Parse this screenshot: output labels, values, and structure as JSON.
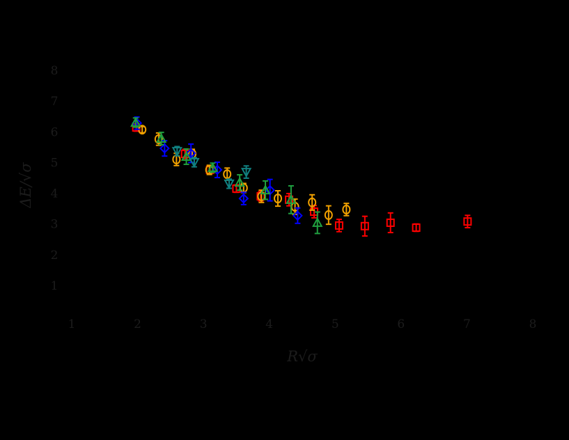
{
  "chart_data": {
    "type": "scatter",
    "title": "",
    "xlabel": "R√σ",
    "ylabel": "ΔE/√σ",
    "xlim": [
      1,
      8
    ],
    "ylim": [
      1,
      8
    ],
    "xticks": [
      1,
      2,
      3,
      4,
      5,
      6,
      7,
      8
    ],
    "yticks": [
      1,
      2,
      3,
      4,
      5,
      6,
      7,
      8
    ],
    "grid": false,
    "legend": "none",
    "background": "#000000",
    "series": [
      {
        "name": "red-squares",
        "marker": "square",
        "color": "#ff0000",
        "points": [
          {
            "x": 1.98,
            "y": 6.14,
            "err": 0.12
          },
          {
            "x": 2.72,
            "y": 5.28,
            "err": 0.15
          },
          {
            "x": 3.1,
            "y": 4.76,
            "err": 0.12
          },
          {
            "x": 3.5,
            "y": 4.15,
            "err": 0.12
          },
          {
            "x": 3.87,
            "y": 3.9,
            "err": 0.15
          },
          {
            "x": 4.3,
            "y": 3.79,
            "err": 0.2
          },
          {
            "x": 4.68,
            "y": 3.4,
            "err": 0.2
          },
          {
            "x": 5.06,
            "y": 2.95,
            "err": 0.2
          },
          {
            "x": 5.45,
            "y": 2.93,
            "err": 0.32
          },
          {
            "x": 5.84,
            "y": 3.04,
            "err": 0.32
          },
          {
            "x": 6.23,
            "y": 2.88,
            "err": 0.12
          },
          {
            "x": 7.01,
            "y": 3.08,
            "err": 0.2
          }
        ]
      },
      {
        "name": "orange-circles",
        "marker": "circle",
        "color": "#f0a000",
        "points": [
          {
            "x": 2.07,
            "y": 6.07,
            "err": 0.1
          },
          {
            "x": 2.32,
            "y": 5.76,
            "err": 0.2
          },
          {
            "x": 2.59,
            "y": 5.1,
            "err": 0.2
          },
          {
            "x": 2.83,
            "y": 5.28,
            "err": 0.15
          },
          {
            "x": 3.09,
            "y": 4.76,
            "err": 0.15
          },
          {
            "x": 3.36,
            "y": 4.62,
            "err": 0.2
          },
          {
            "x": 3.61,
            "y": 4.17,
            "err": 0.15
          },
          {
            "x": 3.88,
            "y": 3.9,
            "err": 0.2
          },
          {
            "x": 4.13,
            "y": 3.83,
            "err": 0.25
          },
          {
            "x": 4.39,
            "y": 3.56,
            "err": 0.25
          },
          {
            "x": 4.65,
            "y": 3.7,
            "err": 0.25
          },
          {
            "x": 4.9,
            "y": 3.29,
            "err": 0.3
          },
          {
            "x": 5.17,
            "y": 3.47,
            "err": 0.2
          }
        ]
      },
      {
        "name": "blue-diamonds",
        "marker": "diamond",
        "color": "#0000ff",
        "points": [
          {
            "x": 1.99,
            "y": 6.28,
            "err": 0.2
          },
          {
            "x": 2.41,
            "y": 5.46,
            "err": 0.25
          },
          {
            "x": 2.81,
            "y": 5.3,
            "err": 0.3
          },
          {
            "x": 3.21,
            "y": 4.76,
            "err": 0.25
          },
          {
            "x": 3.61,
            "y": 3.83,
            "err": 0.2
          },
          {
            "x": 4.01,
            "y": 4.1,
            "err": 0.35
          },
          {
            "x": 4.43,
            "y": 3.27,
            "err": 0.25
          }
        ]
      },
      {
        "name": "green-triangles-up",
        "marker": "triangle-up",
        "color": "#20a040",
        "points": [
          {
            "x": 1.97,
            "y": 6.3,
            "err": 0.15
          },
          {
            "x": 2.36,
            "y": 5.78,
            "err": 0.2
          },
          {
            "x": 2.74,
            "y": 5.19,
            "err": 0.25
          },
          {
            "x": 3.14,
            "y": 4.83,
            "err": 0.15
          },
          {
            "x": 3.55,
            "y": 4.35,
            "err": 0.25
          },
          {
            "x": 3.94,
            "y": 4.1,
            "err": 0.3
          },
          {
            "x": 4.33,
            "y": 3.79,
            "err": 0.45
          },
          {
            "x": 4.73,
            "y": 3.04,
            "err": 0.35
          }
        ]
      },
      {
        "name": "teal-triangles-down",
        "marker": "triangle-down",
        "color": "#108080",
        "points": [
          {
            "x": 2.6,
            "y": 5.37,
            "err": 0.15
          },
          {
            "x": 2.86,
            "y": 5.01,
            "err": 0.15
          },
          {
            "x": 3.39,
            "y": 4.31,
            "err": 0.15
          },
          {
            "x": 3.65,
            "y": 4.69,
            "err": 0.2
          }
        ]
      }
    ]
  },
  "labels": {
    "x_axis": "R√σ",
    "y_axis": "ΔE/√σ",
    "x_ticks": [
      "1",
      "2",
      "3",
      "4",
      "5",
      "6",
      "7",
      "8"
    ],
    "y_ticks": [
      "1",
      "2",
      "3",
      "4",
      "5",
      "6",
      "7",
      "8"
    ]
  }
}
